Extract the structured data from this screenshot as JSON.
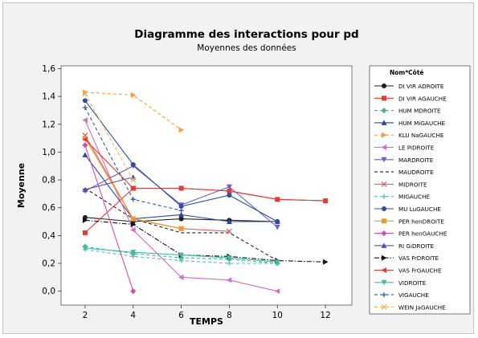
{
  "chart_data": {
    "type": "line",
    "title": "Diagramme des interactions pour pd",
    "subtitle": "Moyennes des données",
    "xlabel": "TEMPS",
    "ylabel": "Moyenne",
    "x_ticks": [
      2,
      4,
      6,
      8,
      10,
      12
    ],
    "y_ticks": [
      "0,0",
      "0,2",
      "0,4",
      "0,6",
      "0,8",
      "1,0",
      "1,2",
      "1,4",
      "1,6"
    ],
    "xlim": [
      1,
      13.1
    ],
    "ylim": [
      -0.1,
      1.62
    ],
    "grid": false,
    "legend_position": "right",
    "legend_title": "Nom*Côté",
    "series": [
      {
        "name": "DI VIR ADROITE",
        "color": "#1f1f1f",
        "marker": "circle",
        "dash": "solid",
        "points": [
          [
            2,
            0.53
          ],
          [
            4,
            0.5
          ],
          [
            6,
            0.52
          ],
          [
            8,
            0.51
          ],
          [
            10,
            0.5
          ]
        ]
      },
      {
        "name": "DI VIR AGAUCHE",
        "color": "#e8392b",
        "marker": "square",
        "dash": "solid",
        "points": [
          [
            2,
            0.42
          ],
          [
            4,
            0.74
          ],
          [
            6,
            0.74
          ],
          [
            8,
            0.72
          ],
          [
            10,
            0.66
          ],
          [
            12,
            0.65
          ]
        ]
      },
      {
        "name": "HUM MDROITE",
        "color": "#3fb6a0",
        "marker": "diamond",
        "dash": "dash",
        "points": [
          [
            2,
            0.32
          ],
          [
            4,
            0.27
          ],
          [
            6,
            0.24
          ],
          [
            8,
            0.23
          ],
          [
            10,
            0.2
          ]
        ]
      },
      {
        "name": "HUM MiGAUCHE",
        "color": "#2846a8",
        "marker": "triangle-up",
        "dash": "solid",
        "points": [
          [
            2,
            0.98
          ],
          [
            4,
            0.52
          ],
          [
            6,
            0.55
          ],
          [
            8,
            0.5
          ],
          [
            10,
            0.5
          ]
        ]
      },
      {
        "name": "KLU NaGAUCHE",
        "color": "#ff9d2e",
        "marker": "triangle-right",
        "dash": "dash",
        "points": [
          [
            2,
            1.43
          ],
          [
            4,
            1.41
          ],
          [
            6,
            1.16
          ]
        ]
      },
      {
        "name": "LE PiDROITE",
        "color": "#d46cc8",
        "marker": "triangle-left",
        "dash": "solid",
        "points": [
          [
            2,
            1.23
          ],
          [
            4,
            0.44
          ],
          [
            6,
            0.1
          ],
          [
            8,
            0.08
          ],
          [
            10,
            0.0
          ]
        ]
      },
      {
        "name": "MARDROITE",
        "color": "#6a5ec4",
        "marker": "triangle-down",
        "dash": "solid",
        "points": [
          [
            2,
            0.72
          ],
          [
            4,
            0.9
          ],
          [
            6,
            0.62
          ],
          [
            8,
            0.75
          ],
          [
            10,
            0.46
          ]
        ]
      },
      {
        "name": "MAUDROITE",
        "color": "#202020",
        "marker": "none",
        "dash": "dash",
        "points": [
          [
            2,
            0.74
          ],
          [
            4,
            0.52
          ],
          [
            6,
            0.42
          ],
          [
            8,
            0.42
          ],
          [
            10,
            0.22
          ]
        ]
      },
      {
        "name": "MIDROITE",
        "color": "#e06060",
        "marker": "x",
        "dash": "solid",
        "points": [
          [
            2,
            1.12
          ],
          [
            4,
            0.52
          ],
          [
            6,
            0.45
          ],
          [
            8,
            0.43
          ]
        ]
      },
      {
        "name": "MIGAUCHE",
        "color": "#52c4b0",
        "marker": "plus",
        "dash": "dash",
        "points": [
          [
            2,
            0.3
          ],
          [
            4,
            0.25
          ],
          [
            6,
            0.22
          ],
          [
            8,
            0.2
          ],
          [
            10,
            0.2
          ]
        ]
      },
      {
        "name": "MU LuGAUCHE",
        "color": "#2c4da6",
        "marker": "circle",
        "dash": "solid",
        "points": [
          [
            2,
            1.37
          ],
          [
            4,
            0.91
          ],
          [
            6,
            0.61
          ],
          [
            8,
            0.69
          ],
          [
            10,
            0.5
          ]
        ]
      },
      {
        "name": "PER henDROITE",
        "color": "#f39a1c",
        "marker": "square",
        "dash": "solid",
        "points": [
          [
            2,
            1.1
          ],
          [
            4,
            0.52
          ],
          [
            6,
            0.45
          ]
        ]
      },
      {
        "name": "PER henGAUCHE",
        "color": "#cc4fb8",
        "marker": "diamond",
        "dash": "solid",
        "points": [
          [
            2,
            1.05
          ],
          [
            4,
            0.0
          ]
        ]
      },
      {
        "name": "RI GiDROITE",
        "color": "#5a4bb5",
        "marker": "triangle-up",
        "dash": "solid",
        "points": [
          [
            2,
            0.73
          ],
          [
            4,
            0.82
          ]
        ]
      },
      {
        "name": "VAS FrDROITE",
        "color": "#151515",
        "marker": "triangle-right",
        "dash": "dashdot",
        "points": [
          [
            2,
            0.51
          ],
          [
            4,
            0.48
          ],
          [
            6,
            0.26
          ],
          [
            8,
            0.25
          ],
          [
            10,
            0.22
          ],
          [
            12,
            0.21
          ]
        ]
      },
      {
        "name": "VAS FrGAUCHE",
        "color": "#e83a32",
        "marker": "triangle-left",
        "dash": "solid",
        "points": [
          [
            2,
            1.09
          ],
          [
            4,
            0.74
          ],
          [
            6,
            0.74
          ],
          [
            8,
            0.72
          ],
          [
            10,
            0.66
          ],
          [
            12,
            0.65
          ]
        ]
      },
      {
        "name": "VIDROITE",
        "color": "#3dbf9f",
        "marker": "triangle-down",
        "dash": "solid",
        "points": [
          [
            2,
            0.31
          ],
          [
            4,
            0.28
          ],
          [
            6,
            0.26
          ],
          [
            8,
            0.24
          ],
          [
            10,
            0.21
          ]
        ]
      },
      {
        "name": "VIGAUCHE",
        "color": "#3153b8",
        "marker": "plus",
        "dash": "dash",
        "points": [
          [
            2,
            1.32
          ],
          [
            4,
            0.66
          ],
          [
            6,
            0.58
          ]
        ]
      },
      {
        "name": "WEIN JaGAUCHE",
        "color": "#f4b14a",
        "marker": "x",
        "dash": "dash",
        "points": [
          [
            2,
            1.42
          ],
          [
            4,
            0.8
          ]
        ]
      }
    ]
  }
}
